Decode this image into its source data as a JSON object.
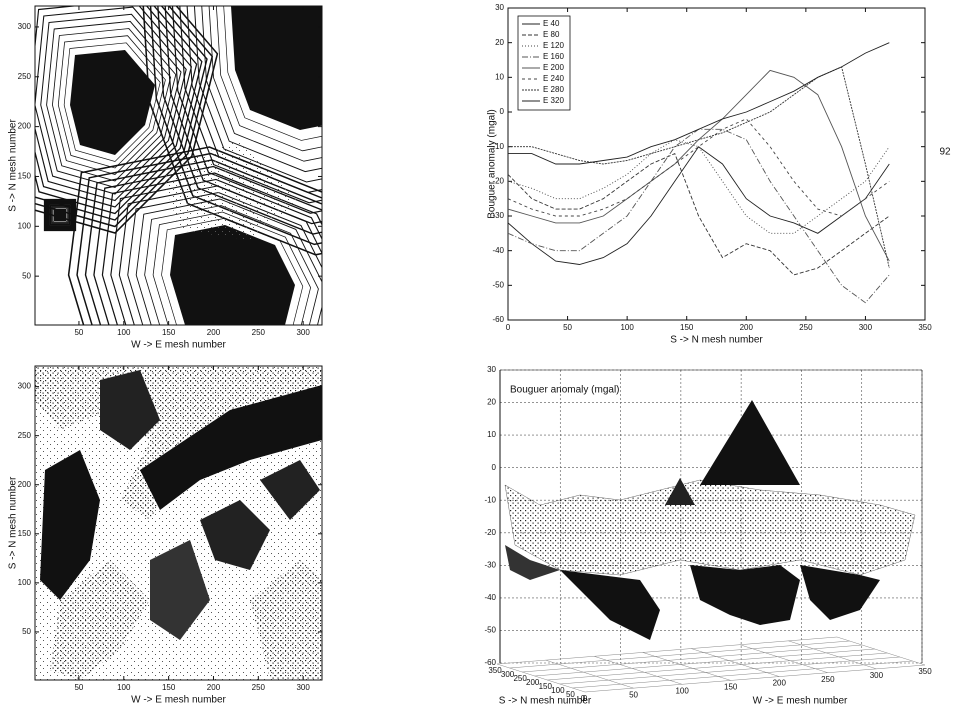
{
  "margin_note": "92",
  "chart_data": [
    {
      "type": "contour",
      "xlabel": "W -> E mesh number",
      "ylabel": "S -> N mesh number",
      "xlim": [
        1,
        321
      ],
      "ylim": [
        1,
        321
      ],
      "xticks": [
        50,
        100,
        150,
        200,
        250,
        300
      ],
      "yticks": [
        50,
        100,
        150,
        200,
        250,
        300
      ]
    },
    {
      "type": "line",
      "xlabel": "S -> N mesh number",
      "ylabel": "Bouguer anomaly (mgal)",
      "xlim": [
        0,
        350
      ],
      "ylim": [
        -60,
        30
      ],
      "xticks": [
        0,
        50,
        100,
        150,
        200,
        250,
        300,
        350
      ],
      "yticks": [
        -60,
        -50,
        -40,
        -30,
        -20,
        -10,
        0,
        10,
        20,
        30
      ],
      "legend": "upper left",
      "x": [
        0,
        20,
        40,
        60,
        80,
        100,
        120,
        140,
        160,
        180,
        200,
        220,
        240,
        260,
        280,
        300,
        320
      ],
      "series": [
        {
          "name": "E 40",
          "color": "#222222",
          "values": [
            -32,
            -38,
            -43,
            -44,
            -42,
            -38,
            -30,
            -20,
            -10,
            -15,
            -25,
            -30,
            -32,
            -35,
            -30,
            -25,
            -15
          ]
        },
        {
          "name": "E 80",
          "color": "#333333",
          "values": [
            -18,
            -25,
            -28,
            -28,
            -25,
            -20,
            -15,
            -12,
            -30,
            -42,
            -38,
            -40,
            -47,
            -45,
            -40,
            -35,
            -30
          ]
        },
        {
          "name": "E 120",
          "color": "#444444",
          "values": [
            -20,
            -22,
            -25,
            -25,
            -22,
            -18,
            -12,
            -8,
            -10,
            -20,
            -30,
            -35,
            -35,
            -30,
            -25,
            -20,
            -10
          ]
        },
        {
          "name": "E 160",
          "color": "#555555",
          "values": [
            -35,
            -38,
            -40,
            -40,
            -35,
            -30,
            -20,
            -10,
            -5,
            -5,
            -8,
            -20,
            -30,
            -40,
            -50,
            -55,
            -47
          ]
        },
        {
          "name": "E 200",
          "color": "#555555",
          "values": [
            -28,
            -30,
            -32,
            -32,
            -30,
            -25,
            -20,
            -15,
            -8,
            -2,
            5,
            12,
            10,
            5,
            -10,
            -30,
            -43
          ]
        },
        {
          "name": "E 240",
          "color": "#444444",
          "values": [
            -25,
            -28,
            -30,
            -30,
            -28,
            -25,
            -20,
            -15,
            -10,
            -5,
            -2,
            -10,
            -20,
            -28,
            -30,
            -25,
            -20
          ]
        },
        {
          "name": "E 280",
          "color": "#333333",
          "values": [
            -10,
            -10,
            -12,
            -14,
            -15,
            -14,
            -12,
            -10,
            -8,
            -6,
            -3,
            0,
            5,
            10,
            13,
            -15,
            -45
          ]
        },
        {
          "name": "E 320",
          "color": "#222222",
          "values": [
            -12,
            -12,
            -15,
            -15,
            -14,
            -13,
            -10,
            -8,
            -5,
            -2,
            0,
            3,
            6,
            10,
            13,
            17,
            20
          ]
        }
      ]
    },
    {
      "type": "texture",
      "xlabel": "W -> E mesh number",
      "ylabel": "S -> N mesh number",
      "xlim": [
        1,
        321
      ],
      "ylim": [
        1,
        321
      ],
      "xticks": [
        50,
        100,
        150,
        200,
        250,
        300
      ],
      "yticks": [
        50,
        100,
        150,
        200,
        250,
        300
      ]
    },
    {
      "type": "surface3d",
      "title": "Bouguer anomaly (mgal)",
      "xlabel": "W -> E mesh number",
      "ylabel": "S -> N mesh number",
      "zlim": [
        -60,
        30
      ],
      "zticks": [
        -60,
        -50,
        -40,
        -30,
        -20,
        -10,
        0,
        10,
        20,
        30
      ],
      "xlim": [
        0,
        350
      ],
      "xticks": [
        0,
        50,
        100,
        150,
        200,
        250,
        300,
        350
      ],
      "ylim": [
        0,
        350
      ],
      "yticks": [
        0,
        50,
        100,
        150,
        200,
        250,
        300,
        350
      ],
      "grid": true
    }
  ]
}
